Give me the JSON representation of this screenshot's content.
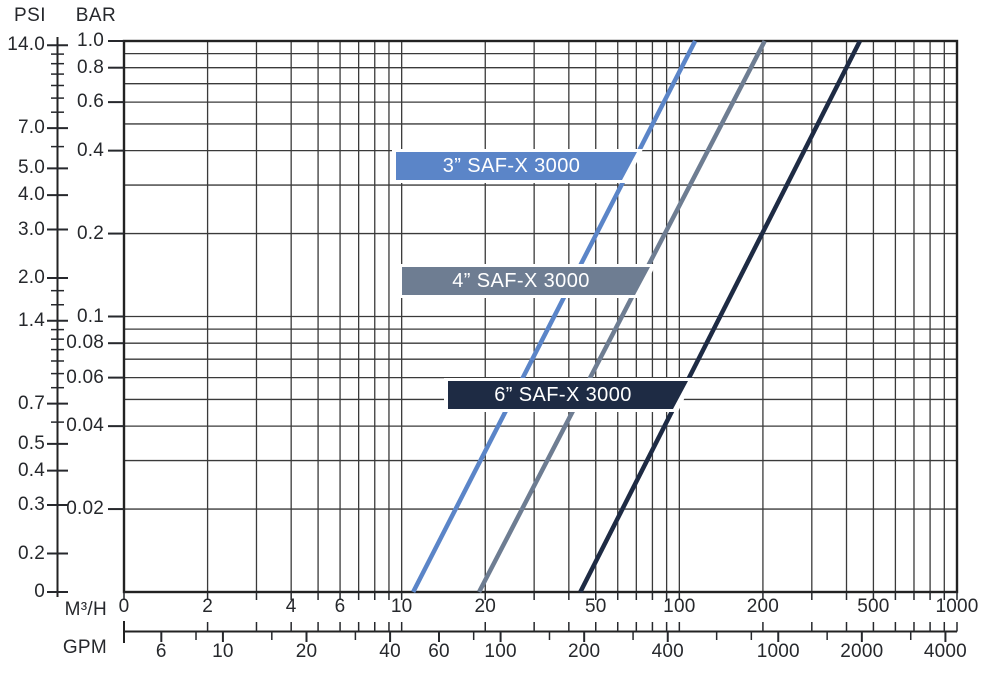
{
  "axes": {
    "psi": {
      "title": "PSI",
      "ticks": [
        {
          "label": "14.0",
          "value": 14
        },
        {
          "label": "7.0",
          "value": 7
        },
        {
          "label": "5.0",
          "value": 5
        },
        {
          "label": "4.0",
          "value": 4
        },
        {
          "label": "3.0",
          "value": 3
        },
        {
          "label": "2.0",
          "value": 2
        },
        {
          "label": "1.4",
          "value": 1.4
        },
        {
          "label": "0.7",
          "value": 0.7
        },
        {
          "label": "0.5",
          "value": 0.5
        },
        {
          "label": "0.4",
          "value": 0.4
        },
        {
          "label": "0.3",
          "value": 0.3
        },
        {
          "label": "0.2",
          "value": 0.2
        },
        {
          "label": "0",
          "value": 0
        }
      ],
      "minor_values": [
        13,
        12,
        11,
        10,
        9,
        8,
        6,
        1.8,
        1.6,
        1.3,
        1.2,
        1.1,
        1.0,
        0.9,
        0.8,
        0.6
      ]
    },
    "bar": {
      "title": "BAR",
      "ticks": [
        {
          "label": "1.0",
          "value": 1.0
        },
        {
          "label": "0.8",
          "value": 0.8
        },
        {
          "label": "0.6",
          "value": 0.6
        },
        {
          "label": "0.4",
          "value": 0.4
        },
        {
          "label": "0.2",
          "value": 0.2
        },
        {
          "label": "0.1",
          "value": 0.1
        },
        {
          "label": "0.08",
          "value": 0.08
        },
        {
          "label": "0.06",
          "value": 0.06
        },
        {
          "label": "0.04",
          "value": 0.04
        },
        {
          "label": "0.02",
          "value": 0.02
        }
      ]
    },
    "m3h": {
      "title": "M³/H",
      "ticks": [
        {
          "label": "0",
          "value": 0
        },
        {
          "label": "2",
          "value": 2
        },
        {
          "label": "4",
          "value": 4
        },
        {
          "label": "6",
          "value": 6
        },
        {
          "label": "10",
          "value": 10
        },
        {
          "label": "20",
          "value": 20
        },
        {
          "label": "50",
          "value": 50
        },
        {
          "label": "100",
          "value": 100
        },
        {
          "label": "200",
          "value": 200
        },
        {
          "label": "500",
          "value": 500
        },
        {
          "label": "1000",
          "value": 1000
        }
      ]
    },
    "gpm": {
      "title": "GPM",
      "ticks": [
        {
          "label": "6",
          "value": 6
        },
        {
          "label": "10",
          "value": 10
        },
        {
          "label": "20",
          "value": 20
        },
        {
          "label": "40",
          "value": 40
        },
        {
          "label": "60",
          "value": 60
        },
        {
          "label": "100",
          "value": 100
        },
        {
          "label": "200",
          "value": 200
        },
        {
          "label": "400",
          "value": 400
        },
        {
          "label": "1000",
          "value": 1000
        },
        {
          "label": "2000",
          "value": 2000
        },
        {
          "label": "4000",
          "value": 4000
        }
      ],
      "minor_values": [
        8,
        15,
        30,
        80,
        150,
        300,
        600,
        800,
        1500,
        3000
      ]
    }
  },
  "chart_data": {
    "type": "line",
    "x_scale": "log",
    "y_scale": "log",
    "x_range_m3h": [
      1,
      1000
    ],
    "y_range_bar": [
      0.01,
      1.0
    ],
    "y_secondary_unit": "PSI",
    "psi_per_bar": 14.504,
    "gpm_per_m3h": 4.403,
    "grid": "on",
    "series": [
      {
        "name": "3” SAF-X 3000",
        "color": "#5b85c8",
        "points_m3h_bar": [
          [
            11,
            0.01
          ],
          [
            114,
            1.0
          ]
        ]
      },
      {
        "name": "4” SAF-X 3000",
        "color": "#6e7d92",
        "points_m3h_bar": [
          [
            19,
            0.01
          ],
          [
            203,
            1.0
          ]
        ]
      },
      {
        "name": "6” SAF-X 3000",
        "color": "#1e2b44",
        "points_m3h_bar": [
          [
            44,
            0.01
          ],
          [
            447,
            1.0
          ]
        ]
      }
    ]
  },
  "series_labels": [
    {
      "text": "3” SAF-X 3000",
      "bg": "#5b85c8"
    },
    {
      "text": "4” SAF-X 3000",
      "bg": "#6e7d92"
    },
    {
      "text": "6” SAF-X 3000",
      "bg": "#1e2b44"
    }
  ]
}
